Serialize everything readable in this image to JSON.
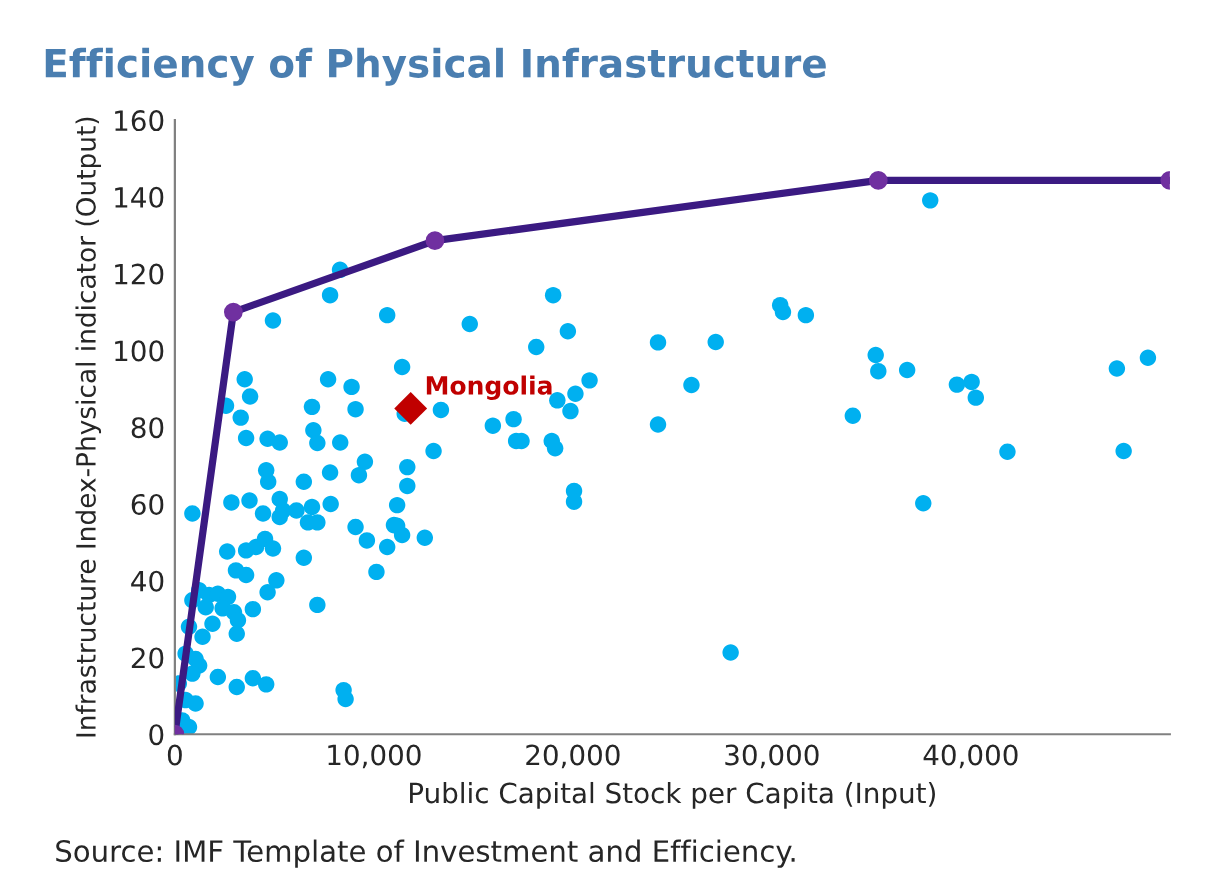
{
  "chart_data": {
    "type": "scatter",
    "title": "Efficiency of Physical Infrastructure",
    "xlabel": "Public Capital Stock per Capita (Input)",
    "ylabel": "Infrastructure Index-Physical indicator (Output)",
    "annotations": [
      "Source: IMF Template of Investment and Efficiency."
    ],
    "xlim": [
      0,
      50000
    ],
    "ylim": [
      0,
      160
    ],
    "xticks": [
      0,
      {
        "value": 10000,
        "label": "10,000"
      },
      {
        "value": 20000,
        "label": "20,000"
      },
      {
        "value": 30000,
        "label": "30,000"
      },
      {
        "value": 40000,
        "label": "40,000"
      }
    ],
    "yticks": [
      0,
      20,
      40,
      60,
      80,
      100,
      120,
      140,
      160
    ],
    "grid": false,
    "legend": false,
    "series": [
      {
        "color": "#00b0f0",
        "marker": "circle",
        "x": [
          4930,
          10670,
          11420,
          3510,
          7700,
          8880,
          3780,
          2570,
          6890,
          9080,
          11550,
          3310,
          3580,
          4660,
          5270,
          6960,
          7160,
          8310,
          4590,
          4690,
          6480,
          7800,
          9550,
          9250,
          11680,
          11680,
          880,
          2840,
          3750,
          4430,
          5270,
          5440,
          5270,
          6110,
          6890,
          7830,
          6690,
          7160,
          9080,
          9650,
          10670,
          11170,
          11420,
          2630,
          3580,
          4080,
          4530,
          4930,
          6480,
          10130,
          3070,
          3580,
          5100,
          4660,
          1220,
          880,
          1720,
          2160,
          2670,
          1550,
          2400,
          2970,
          3920,
          7160,
          710,
          1890,
          3170,
          1390,
          3110,
          540,
          1040,
          1220,
          200,
          880,
          2160,
          3110,
          3920,
          4590,
          8480,
          8580,
          540,
          1040,
          370,
          710,
          7800,
          8300,
          19010,
          14820,
          19750,
          18160,
          20840,
          19220,
          20130,
          19880,
          13370,
          15980,
          17020,
          17150,
          17420,
          18940,
          19110,
          13000,
          20060,
          20060,
          11170,
          11010,
          12560,
          37960,
          30420,
          30560,
          31710,
          24280,
          27180,
          25960,
          24280,
          35220,
          35350,
          36800,
          34070,
          39300,
          40040,
          40250,
          41840,
          37610,
          47340,
          48900,
          47680,
          27930
        ],
        "values": [
          107.8,
          109.2,
          95.7,
          92.5,
          92.5,
          90.5,
          88,
          85.6,
          85.3,
          84.7,
          83.5,
          82.5,
          77.2,
          77,
          76,
          79.2,
          75.9,
          76,
          68.8,
          65.8,
          65.8,
          68.2,
          71,
          67.5,
          69.6,
          64.7,
          57.5,
          60.4,
          60.9,
          57.5,
          61.3,
          58.3,
          56.6,
          58.3,
          59.2,
          60,
          55.2,
          55.2,
          54,
          50.5,
          48.8,
          54.3,
          51.9,
          47.6,
          47.9,
          48.8,
          50.9,
          48.4,
          46,
          42.3,
          42.7,
          41.5,
          40.1,
          37,
          37.5,
          34.9,
          36.3,
          36.6,
          35.8,
          33.1,
          32.8,
          31.8,
          32.6,
          33.7,
          28,
          28.8,
          29.7,
          25.4,
          26.2,
          21,
          19.6,
          17.9,
          13.2,
          15.8,
          14.9,
          12.3,
          14.6,
          13,
          11.5,
          9.2,
          8.9,
          8,
          3.6,
          1.9,
          114.4,
          121,
          114.4,
          106.9,
          105,
          100.9,
          92.2,
          87,
          88.7,
          84.2,
          84.5,
          80.4,
          82.1,
          76.4,
          76.4,
          76.4,
          74.5,
          73.8,
          63.4,
          60.6,
          59.7,
          54.5,
          51.2,
          139.1,
          111.8,
          110,
          109.2,
          102.1,
          102.2,
          91,
          80.7,
          98.8,
          94.6,
          94.9,
          83,
          91.1,
          91.8,
          87.7,
          73.6,
          60.2,
          95.3,
          98.1,
          73.8,
          21.3
        ]
      },
      {
        "type": "line",
        "color": "#3b1a82",
        "marker": "circle",
        "x": [
          0,
          2940,
          13070,
          35350,
          50000
        ],
        "values": [
          0,
          110,
          128.6,
          144.3,
          144.3
        ]
      },
      {
        "name": "Mongolia",
        "color": "#c00000",
        "marker": "diamond",
        "x": [
          11850
        ],
        "values": [
          84.9
        ]
      }
    ]
  }
}
